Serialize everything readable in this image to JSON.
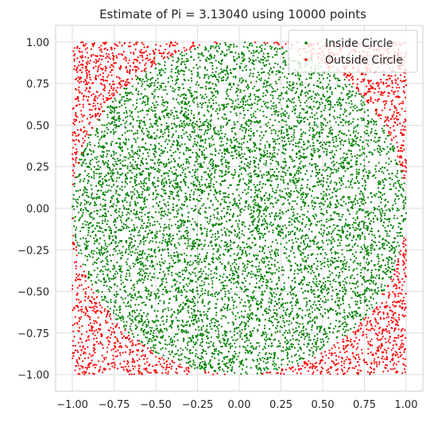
{
  "chart_data": {
    "type": "scatter",
    "title": "Estimate of Pi = 3.13040 using 10000 points",
    "xlabel": "",
    "ylabel": "",
    "xlim": [
      -1.1,
      1.1
    ],
    "ylim": [
      -1.1,
      1.1
    ],
    "grid": true,
    "legend_placement": "top-right",
    "x_ticks": [
      "−1.00",
      "−0.75",
      "−0.50",
      "−0.25",
      "0.00",
      "0.25",
      "0.50",
      "0.75",
      "1.00"
    ],
    "y_ticks": [
      "1.00",
      "0.75",
      "0.50",
      "0.25",
      "0.00",
      "−0.25",
      "−0.50",
      "−0.75",
      "−1.00"
    ],
    "x_tick_values": [
      -1.0,
      -0.75,
      -0.5,
      -0.25,
      0.0,
      0.25,
      0.5,
      0.75,
      1.0
    ],
    "y_tick_values": [
      1.0,
      0.75,
      0.5,
      0.25,
      0.0,
      -0.25,
      -0.5,
      -0.75,
      -1.0
    ],
    "total_points": 10000,
    "pi_estimate": 3.1304,
    "series": [
      {
        "name": "Inside Circle",
        "color": "#008000",
        "region": "x^2 + y^2 <= 1",
        "count": 7826
      },
      {
        "name": "Outside Circle",
        "color": "#ff0000",
        "region": "x^2 + y^2 > 1",
        "count": 2174
      }
    ],
    "sampling": {
      "distribution": "uniform",
      "x_range": [
        -1,
        1
      ],
      "y_range": [
        -1,
        1
      ]
    }
  }
}
